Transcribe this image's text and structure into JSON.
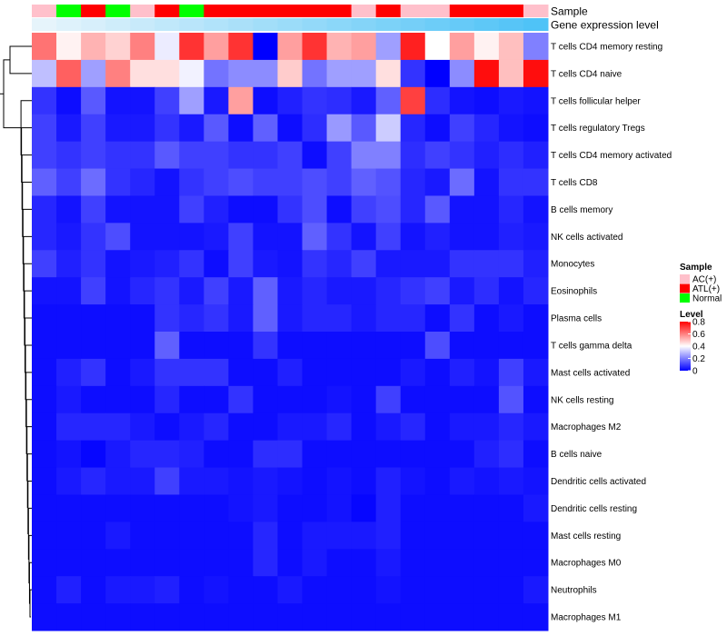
{
  "chart_data": {
    "type": "heatmap",
    "title": "",
    "annotation_labels": {
      "sample": "Sample",
      "gene_expression": "Gene expression level"
    },
    "columns": 21,
    "sample_groups": [
      "AC(+)",
      "Normal",
      "ATL(+)",
      "Normal",
      "AC(+)",
      "ATL(+)",
      "Normal",
      "ATL(+)",
      "ATL(+)",
      "ATL(+)",
      "ATL(+)",
      "ATL(+)",
      "ATL(+)",
      "AC(+)",
      "ATL(+)",
      "AC(+)",
      "AC(+)",
      "ATL(+)",
      "ATL(+)",
      "ATL(+)",
      "AC(+)"
    ],
    "gene_expression_level": [
      0.0,
      0.05,
      0.1,
      0.15,
      0.2,
      0.25,
      0.3,
      0.35,
      0.4,
      0.45,
      0.5,
      0.55,
      0.6,
      0.65,
      0.7,
      0.75,
      0.8,
      0.85,
      0.9,
      0.95,
      1.0
    ],
    "rows": [
      "T cells CD4 memory resting",
      "T cells CD4 naive",
      "T cells follicular helper",
      "T cells regulatory  Tregs",
      "T cells CD4 memory activated",
      "T cells CD8",
      "B cells memory",
      "NK cells activated",
      "Monocytes",
      "Eosinophils",
      "Plasma cells",
      "T cells gamma delta",
      "Mast cells activated",
      "NK cells resting",
      "Macrophages M2",
      "B cells naive",
      "Dendritic cells activated",
      "Dendritic cells resting",
      "Mast cells resting",
      "Macrophages M0",
      "Neutrophils",
      "Macrophages M1"
    ],
    "values": [
      [
        0.62,
        0.42,
        0.52,
        0.47,
        0.6,
        0.37,
        0.72,
        0.55,
        0.72,
        0.0,
        0.55,
        0.72,
        0.52,
        0.55,
        0.25,
        0.75,
        0.4,
        0.55,
        0.42,
        0.5,
        0.2
      ],
      [
        0.3,
        0.65,
        0.25,
        0.6,
        0.45,
        0.45,
        0.38,
        0.18,
        0.22,
        0.22,
        0.48,
        0.18,
        0.25,
        0.25,
        0.45,
        0.08,
        0.0,
        0.22,
        0.78,
        0.5,
        0.78
      ],
      [
        0.08,
        0.02,
        0.14,
        0.03,
        0.03,
        0.1,
        0.25,
        0.04,
        0.55,
        0.02,
        0.05,
        0.08,
        0.07,
        0.04,
        0.15,
        0.7,
        0.07,
        0.03,
        0.02,
        0.04,
        0.03
      ],
      [
        0.1,
        0.04,
        0.1,
        0.04,
        0.04,
        0.08,
        0.04,
        0.14,
        0.02,
        0.15,
        0.02,
        0.07,
        0.24,
        0.14,
        0.32,
        0.06,
        0.02,
        0.1,
        0.06,
        0.03,
        0.02
      ],
      [
        0.1,
        0.08,
        0.1,
        0.08,
        0.08,
        0.14,
        0.1,
        0.1,
        0.08,
        0.08,
        0.1,
        0.02,
        0.1,
        0.2,
        0.2,
        0.07,
        0.1,
        0.08,
        0.05,
        0.07,
        0.05
      ],
      [
        0.15,
        0.1,
        0.17,
        0.08,
        0.06,
        0.03,
        0.08,
        0.1,
        0.12,
        0.1,
        0.1,
        0.12,
        0.1,
        0.15,
        0.13,
        0.06,
        0.04,
        0.17,
        0.03,
        0.08,
        0.08
      ],
      [
        0.06,
        0.03,
        0.1,
        0.03,
        0.03,
        0.03,
        0.1,
        0.05,
        0.02,
        0.02,
        0.08,
        0.12,
        0.02,
        0.1,
        0.12,
        0.06,
        0.14,
        0.03,
        0.03,
        0.06,
        0.03
      ],
      [
        0.06,
        0.04,
        0.08,
        0.12,
        0.03,
        0.03,
        0.03,
        0.04,
        0.1,
        0.03,
        0.03,
        0.15,
        0.08,
        0.03,
        0.1,
        0.03,
        0.05,
        0.03,
        0.03,
        0.05,
        0.04
      ],
      [
        0.1,
        0.05,
        0.08,
        0.03,
        0.04,
        0.05,
        0.08,
        0.02,
        0.1,
        0.04,
        0.03,
        0.08,
        0.06,
        0.1,
        0.04,
        0.04,
        0.04,
        0.08,
        0.08,
        0.08,
        0.05
      ],
      [
        0.03,
        0.03,
        0.1,
        0.03,
        0.06,
        0.08,
        0.04,
        0.1,
        0.04,
        0.15,
        0.04,
        0.06,
        0.04,
        0.04,
        0.06,
        0.08,
        0.1,
        0.04,
        0.07,
        0.03,
        0.06
      ],
      [
        0.02,
        0.02,
        0.02,
        0.02,
        0.02,
        0.08,
        0.06,
        0.08,
        0.04,
        0.15,
        0.04,
        0.06,
        0.06,
        0.04,
        0.06,
        0.06,
        0.02,
        0.08,
        0.02,
        0.04,
        0.02
      ],
      [
        0.02,
        0.02,
        0.02,
        0.02,
        0.02,
        0.15,
        0.02,
        0.02,
        0.02,
        0.08,
        0.02,
        0.02,
        0.02,
        0.02,
        0.02,
        0.02,
        0.12,
        0.02,
        0.02,
        0.02,
        0.02
      ],
      [
        0.02,
        0.05,
        0.08,
        0.02,
        0.04,
        0.08,
        0.08,
        0.08,
        0.02,
        0.02,
        0.05,
        0.02,
        0.02,
        0.02,
        0.02,
        0.04,
        0.02,
        0.05,
        0.03,
        0.1,
        0.04
      ],
      [
        0.02,
        0.04,
        0.02,
        0.02,
        0.02,
        0.06,
        0.02,
        0.02,
        0.08,
        0.02,
        0.02,
        0.02,
        0.03,
        0.02,
        0.1,
        0.02,
        0.02,
        0.02,
        0.02,
        0.13,
        0.02
      ],
      [
        0.02,
        0.06,
        0.06,
        0.06,
        0.04,
        0.02,
        0.04,
        0.06,
        0.02,
        0.02,
        0.04,
        0.04,
        0.06,
        0.02,
        0.04,
        0.06,
        0.02,
        0.04,
        0.04,
        0.06,
        0.04
      ],
      [
        0.02,
        0.03,
        0.01,
        0.04,
        0.06,
        0.06,
        0.05,
        0.02,
        0.02,
        0.07,
        0.07,
        0.02,
        0.02,
        0.02,
        0.02,
        0.02,
        0.02,
        0.02,
        0.05,
        0.07,
        0.02
      ],
      [
        0.02,
        0.04,
        0.06,
        0.04,
        0.04,
        0.1,
        0.04,
        0.04,
        0.03,
        0.04,
        0.03,
        0.02,
        0.03,
        0.02,
        0.05,
        0.03,
        0.02,
        0.04,
        0.03,
        0.04,
        0.03
      ],
      [
        0.02,
        0.02,
        0.02,
        0.02,
        0.02,
        0.02,
        0.02,
        0.02,
        0.03,
        0.04,
        0.02,
        0.02,
        0.03,
        0.01,
        0.05,
        0.02,
        0.02,
        0.02,
        0.02,
        0.02,
        0.04
      ],
      [
        0.02,
        0.02,
        0.02,
        0.04,
        0.02,
        0.02,
        0.02,
        0.02,
        0.02,
        0.06,
        0.02,
        0.04,
        0.04,
        0.04,
        0.05,
        0.02,
        0.02,
        0.02,
        0.02,
        0.02,
        0.02
      ],
      [
        0.02,
        0.02,
        0.02,
        0.02,
        0.02,
        0.02,
        0.02,
        0.02,
        0.02,
        0.06,
        0.02,
        0.04,
        0.02,
        0.02,
        0.04,
        0.02,
        0.02,
        0.02,
        0.02,
        0.02,
        0.02
      ],
      [
        0.02,
        0.05,
        0.02,
        0.04,
        0.04,
        0.05,
        0.02,
        0.03,
        0.02,
        0.02,
        0.04,
        0.02,
        0.02,
        0.02,
        0.03,
        0.02,
        0.02,
        0.02,
        0.02,
        0.02,
        0.04
      ],
      [
        0.02,
        0.02,
        0.02,
        0.02,
        0.02,
        0.02,
        0.02,
        0.02,
        0.02,
        0.02,
        0.02,
        0.02,
        0.02,
        0.02,
        0.02,
        0.02,
        0.02,
        0.02,
        0.02,
        0.02,
        0.02
      ]
    ],
    "legend": {
      "sample_title": "Sample",
      "sample_entries": [
        {
          "label": "AC(+)",
          "color": "#ffc0cb"
        },
        {
          "label": "ATL(+)",
          "color": "#ff0000"
        },
        {
          "label": "Normal",
          "color": "#00ff00"
        }
      ],
      "level_title": "Level",
      "level_ticks": [
        "0.8",
        "0.6",
        "0.4",
        "0.2",
        "0"
      ],
      "level_range": [
        0,
        0.8
      ]
    },
    "colors": {
      "low": "#0000ff",
      "mid": "#ffffff",
      "high": "#ff0000",
      "gene_low": "#e6f4fb",
      "gene_high": "#4fc3f7"
    }
  }
}
